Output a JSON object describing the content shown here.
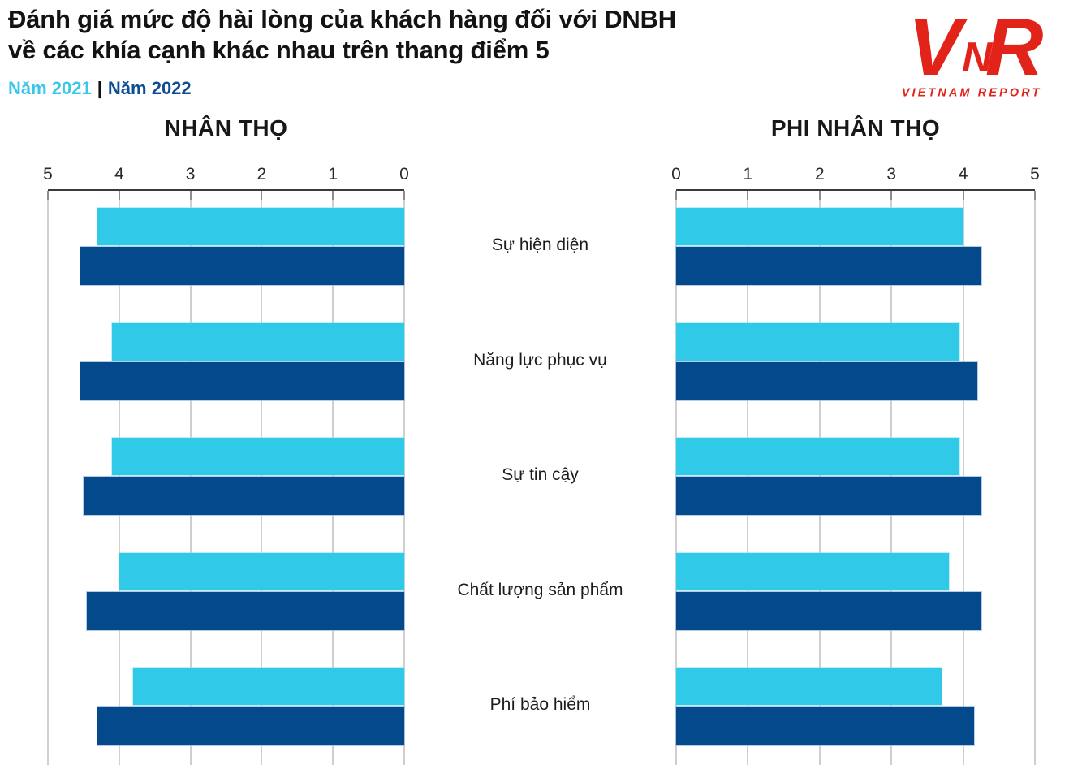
{
  "header": {
    "title_line1": "Đánh giá mức độ hài lòng của khách hàng đối với DNBH",
    "title_line2": "về các khía cạnh khác nhau trên thang điểm 5",
    "legend": [
      {
        "label": "Năm 2021",
        "color": "#3BC7E9"
      },
      {
        "label": "Năm 2022",
        "color": "#0E4D92"
      }
    ],
    "legend_separator": "|",
    "logo": {
      "v": "V",
      "n": "N",
      "r": "R",
      "subtext": "VIETNAM REPORT",
      "color": "#E2231A"
    }
  },
  "chart_data": {
    "type": "bar",
    "orientation": "horizontal",
    "scale_note": "thang điểm 5",
    "xlim": [
      0,
      5
    ],
    "grid": true,
    "categories": [
      "Sự hiện diện",
      "Năng lực phục vụ",
      "Sự tin cậy",
      "Chất lượng sản phẩm",
      "Phí bảo hiểm"
    ],
    "panels": [
      {
        "title": "NHÂN THỌ",
        "axis_direction": "reversed",
        "axis_ticks": [
          5,
          4,
          3,
          2,
          1,
          0
        ],
        "series": [
          {
            "name": "Năm 2021",
            "color": "#30C9E8",
            "values": [
              4.3,
              4.1,
              4.1,
              4.0,
              3.8
            ]
          },
          {
            "name": "Năm 2022",
            "color": "#04498C",
            "values": [
              4.55,
              4.55,
              4.5,
              4.45,
              4.3
            ]
          }
        ]
      },
      {
        "title": "PHI NHÂN THỌ",
        "axis_direction": "normal",
        "axis_ticks": [
          0,
          1,
          2,
          3,
          4,
          5
        ],
        "series": [
          {
            "name": "Năm 2021",
            "color": "#30C9E8",
            "values": [
              4.0,
              3.95,
              3.95,
              3.8,
              3.7
            ]
          },
          {
            "name": "Năm 2022",
            "color": "#04498C",
            "values": [
              4.25,
              4.2,
              4.25,
              4.25,
              4.15
            ]
          }
        ]
      }
    ]
  }
}
